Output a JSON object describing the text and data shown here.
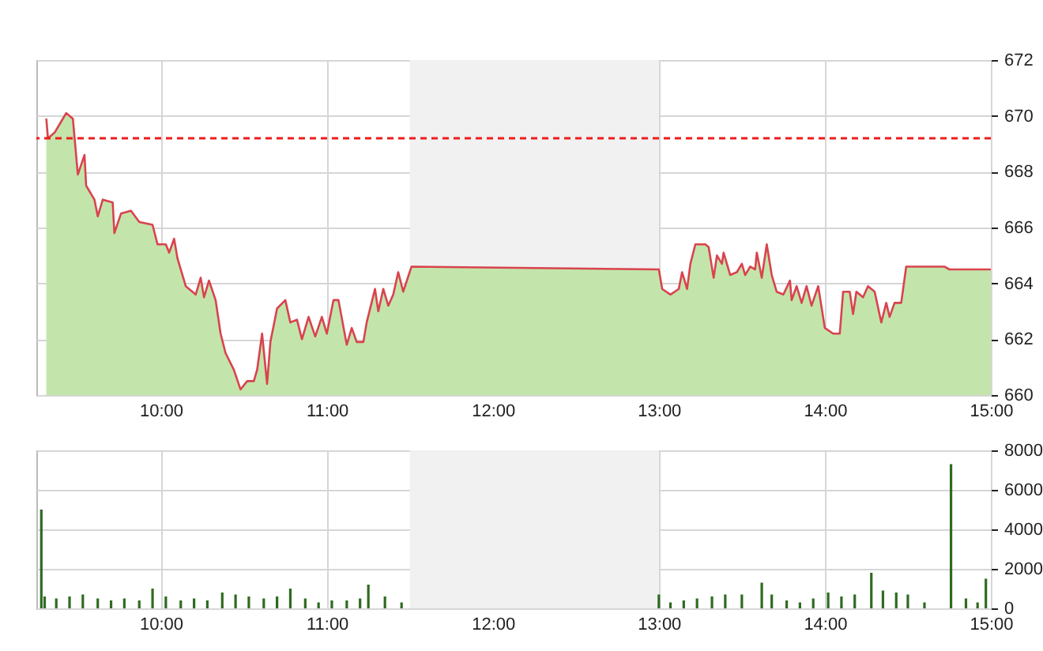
{
  "chart_data": [
    {
      "type": "area",
      "xlim": [
        9.25,
        15
      ],
      "xticks": [
        {
          "value": 10,
          "label": "10:00"
        },
        {
          "value": 11,
          "label": "11:00"
        },
        {
          "value": 12,
          "label": "12:00"
        },
        {
          "value": 13,
          "label": "13:00"
        },
        {
          "value": 14,
          "label": "14:00"
        },
        {
          "value": 15,
          "label": "15:00"
        }
      ],
      "ylim": [
        660,
        672
      ],
      "yticks": [
        660,
        662,
        664,
        666,
        668,
        670,
        672
      ],
      "grid": true,
      "x": [
        9.31,
        9.32,
        9.36,
        9.4,
        9.43,
        9.47,
        9.5,
        9.54,
        9.55,
        9.6,
        9.62,
        9.65,
        9.71,
        9.72,
        9.76,
        9.82,
        9.87,
        9.95,
        9.98,
        10.03,
        10.05,
        10.08,
        10.1,
        10.15,
        10.21,
        10.24,
        10.26,
        10.29,
        10.33,
        10.36,
        10.39,
        10.44,
        10.48,
        10.52,
        10.56,
        10.58,
        10.61,
        10.64,
        10.66,
        10.7,
        10.75,
        10.78,
        10.82,
        10.85,
        10.89,
        10.93,
        10.97,
        11.0,
        11.04,
        11.07,
        11.12,
        11.15,
        11.18,
        11.22,
        11.24,
        11.29,
        11.31,
        11.34,
        11.37,
        11.4,
        11.43,
        11.46,
        11.51,
        13.0,
        13.02,
        13.07,
        13.12,
        13.14,
        13.17,
        13.19,
        13.22,
        13.28,
        13.3,
        13.33,
        13.35,
        13.38,
        13.39,
        13.43,
        13.47,
        13.5,
        13.52,
        13.55,
        13.58,
        13.59,
        13.62,
        13.65,
        13.68,
        13.71,
        13.75,
        13.79,
        13.8,
        13.83,
        13.86,
        13.89,
        13.92,
        13.96,
        14.0,
        14.05,
        14.09,
        14.11,
        14.15,
        14.17,
        14.19,
        14.23,
        14.26,
        14.3,
        14.34,
        14.37,
        14.39,
        14.42,
        14.46,
        14.49,
        14.72,
        14.75,
        15.0
      ],
      "series": [
        {
          "color": "#c3e5ab",
          "values": [
            669.9,
            669.2,
            669.4,
            669.8,
            670.1,
            669.9,
            667.9,
            668.6,
            667.5,
            667.0,
            666.4,
            667.0,
            666.9,
            665.8,
            666.5,
            666.6,
            666.2,
            666.1,
            665.4,
            665.4,
            665.1,
            665.6,
            664.9,
            663.9,
            663.6,
            664.2,
            663.5,
            664.1,
            663.4,
            662.2,
            661.5,
            660.9,
            660.2,
            660.5,
            660.5,
            660.9,
            662.2,
            660.4,
            661.9,
            663.1,
            663.4,
            662.6,
            662.7,
            662.0,
            662.8,
            662.1,
            662.8,
            662.2,
            663.4,
            663.4,
            661.8,
            662.4,
            661.9,
            661.9,
            662.6,
            663.8,
            663.0,
            663.8,
            663.2,
            663.6,
            664.4,
            663.7,
            664.6,
            664.5,
            663.8,
            663.6,
            663.8,
            664.4,
            663.8,
            664.7,
            665.4,
            665.4,
            665.3,
            664.2,
            665.0,
            664.7,
            665.1,
            664.3,
            664.4,
            664.7,
            664.3,
            664.6,
            664.5,
            665.1,
            664.2,
            665.4,
            664.3,
            663.7,
            663.6,
            664.1,
            663.4,
            663.9,
            663.3,
            663.9,
            663.2,
            663.9,
            662.4,
            662.2,
            662.2,
            663.7,
            663.7,
            662.9,
            663.7,
            663.5,
            663.9,
            663.7,
            662.6,
            663.3,
            662.8,
            663.3,
            663.3,
            664.6,
            664.6,
            664.5,
            664.5
          ]
        },
        {
          "type": "line",
          "color": "#d9434e",
          "values": [
            669.9,
            669.2,
            669.4,
            669.8,
            670.1,
            669.9,
            667.9,
            668.6,
            667.5,
            667.0,
            666.4,
            667.0,
            666.9,
            665.8,
            666.5,
            666.6,
            666.2,
            666.1,
            665.4,
            665.4,
            665.1,
            665.6,
            664.9,
            663.9,
            663.6,
            664.2,
            663.5,
            664.1,
            663.4,
            662.2,
            661.5,
            660.9,
            660.2,
            660.5,
            660.5,
            660.9,
            662.2,
            660.4,
            661.9,
            663.1,
            663.4,
            662.6,
            662.7,
            662.0,
            662.8,
            662.1,
            662.8,
            662.2,
            663.4,
            663.4,
            661.8,
            662.4,
            661.9,
            661.9,
            662.6,
            663.8,
            663.0,
            663.8,
            663.2,
            663.6,
            664.4,
            663.7,
            664.6,
            664.5,
            663.8,
            663.6,
            663.8,
            664.4,
            663.8,
            664.7,
            665.4,
            665.4,
            665.3,
            664.2,
            665.0,
            664.7,
            665.1,
            664.3,
            664.4,
            664.7,
            664.3,
            664.6,
            664.5,
            665.1,
            664.2,
            665.4,
            664.3,
            663.7,
            663.6,
            664.1,
            663.4,
            663.9,
            663.3,
            663.9,
            663.2,
            663.9,
            662.4,
            662.2,
            662.2,
            663.7,
            663.7,
            662.9,
            663.7,
            663.5,
            663.9,
            663.7,
            662.6,
            663.3,
            662.8,
            663.3,
            663.3,
            664.6,
            664.6,
            664.5,
            664.5
          ]
        }
      ],
      "ref_lines": [
        {
          "axis": "y",
          "value": 669.2,
          "color": "#ee1c1c",
          "line_style": "dashed"
        }
      ],
      "bands": [
        {
          "axis": "x",
          "from": 11.5,
          "to": 13,
          "color": "#f1f1f1"
        }
      ]
    },
    {
      "type": "bar",
      "xlim": [
        9.25,
        15
      ],
      "xticks": [
        {
          "value": 10,
          "label": "10:00"
        },
        {
          "value": 11,
          "label": "11:00"
        },
        {
          "value": 12,
          "label": "12:00"
        },
        {
          "value": 13,
          "label": "13:00"
        },
        {
          "value": 14,
          "label": "14:00"
        },
        {
          "value": 15,
          "label": "15:00"
        }
      ],
      "ylim": [
        0,
        8000
      ],
      "yticks": [
        0,
        2000,
        4000,
        6000,
        8000
      ],
      "grid": true,
      "x": [
        9.28,
        9.3,
        9.37,
        9.45,
        9.53,
        9.62,
        9.7,
        9.78,
        9.87,
        9.95,
        10.03,
        10.12,
        10.2,
        10.28,
        10.37,
        10.45,
        10.53,
        10.62,
        10.7,
        10.78,
        10.87,
        10.95,
        11.03,
        11.12,
        11.2,
        11.25,
        11.35,
        11.45,
        13.0,
        13.07,
        13.15,
        13.23,
        13.32,
        13.4,
        13.5,
        13.62,
        13.68,
        13.77,
        13.85,
        13.93,
        14.02,
        14.1,
        14.18,
        14.28,
        14.35,
        14.43,
        14.5,
        14.6,
        14.76,
        14.85,
        14.92,
        14.97
      ],
      "series": [
        {
          "color": "#2f6b22",
          "values": [
            5000,
            600,
            500,
            600,
            700,
            500,
            400,
            500,
            400,
            1000,
            600,
            400,
            500,
            400,
            800,
            700,
            600,
            500,
            600,
            1000,
            500,
            300,
            400,
            400,
            500,
            1200,
            600,
            300,
            700,
            300,
            400,
            500,
            600,
            700,
            700,
            1300,
            700,
            400,
            300,
            500,
            800,
            600,
            700,
            1800,
            900,
            800,
            700,
            300,
            7300,
            500,
            300,
            1500
          ]
        }
      ],
      "bands": [
        {
          "axis": "x",
          "from": 11.5,
          "to": 13,
          "color": "#f1f1f1"
        }
      ]
    }
  ]
}
